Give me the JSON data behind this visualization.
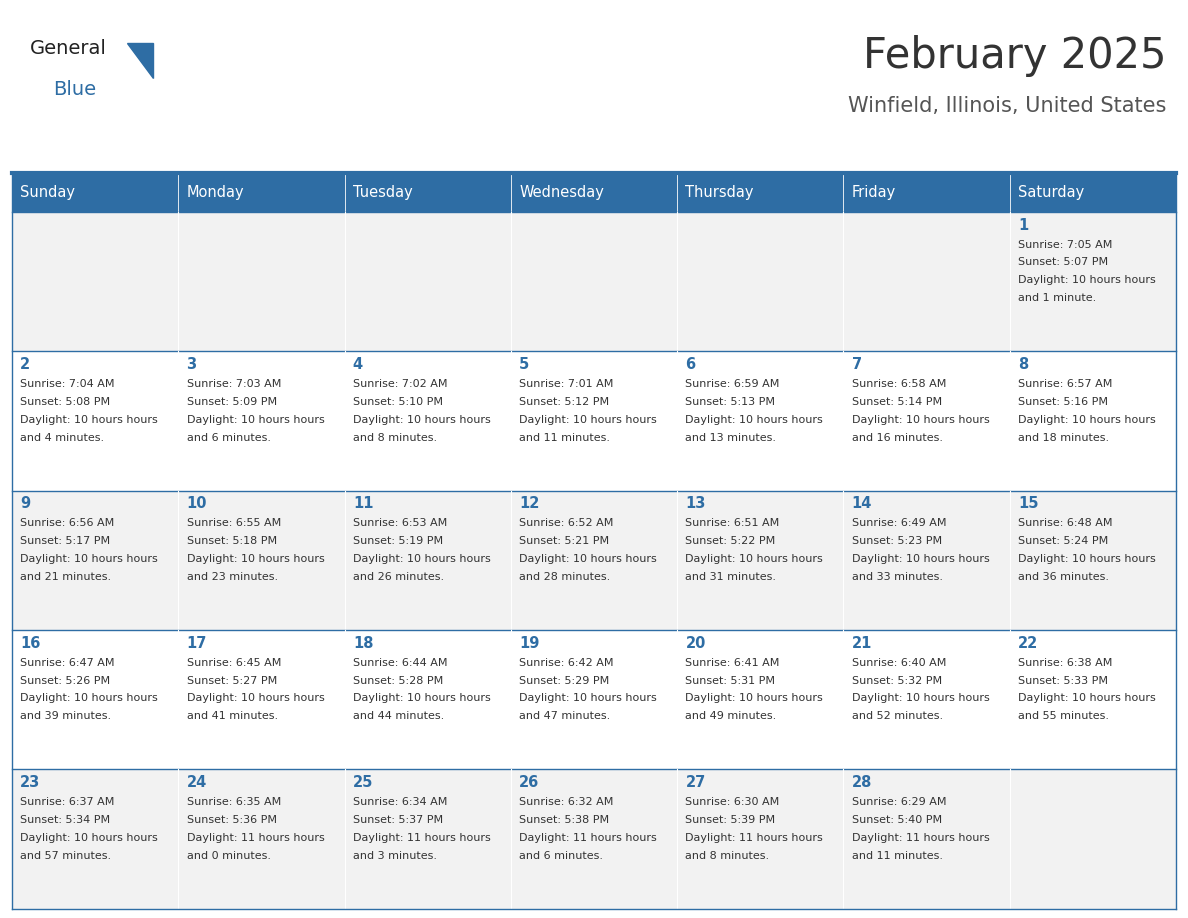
{
  "title": "February 2025",
  "subtitle": "Winfield, Illinois, United States",
  "header_bg": "#2E6DA4",
  "header_text_color": "#FFFFFF",
  "day_names": [
    "Sunday",
    "Monday",
    "Tuesday",
    "Wednesday",
    "Thursday",
    "Friday",
    "Saturday"
  ],
  "cell_bg_odd": "#F2F2F2",
  "cell_bg_even": "#FFFFFF",
  "title_color": "#333333",
  "subtitle_color": "#555555",
  "date_color": "#2E6DA4",
  "text_color": "#333333",
  "line_color": "#2E6DA4",
  "logo_general_color": "#222222",
  "logo_blue_color": "#2E6DA4",
  "calendar_data": [
    [
      null,
      null,
      null,
      null,
      null,
      null,
      {
        "day": 1,
        "sunrise": "7:05 AM",
        "sunset": "5:07 PM",
        "daylight": "10 hours and 1 minute."
      }
    ],
    [
      {
        "day": 2,
        "sunrise": "7:04 AM",
        "sunset": "5:08 PM",
        "daylight": "10 hours and 4 minutes."
      },
      {
        "day": 3,
        "sunrise": "7:03 AM",
        "sunset": "5:09 PM",
        "daylight": "10 hours and 6 minutes."
      },
      {
        "day": 4,
        "sunrise": "7:02 AM",
        "sunset": "5:10 PM",
        "daylight": "10 hours and 8 minutes."
      },
      {
        "day": 5,
        "sunrise": "7:01 AM",
        "sunset": "5:12 PM",
        "daylight": "10 hours and 11 minutes."
      },
      {
        "day": 6,
        "sunrise": "6:59 AM",
        "sunset": "5:13 PM",
        "daylight": "10 hours and 13 minutes."
      },
      {
        "day": 7,
        "sunrise": "6:58 AM",
        "sunset": "5:14 PM",
        "daylight": "10 hours and 16 minutes."
      },
      {
        "day": 8,
        "sunrise": "6:57 AM",
        "sunset": "5:16 PM",
        "daylight": "10 hours and 18 minutes."
      }
    ],
    [
      {
        "day": 9,
        "sunrise": "6:56 AM",
        "sunset": "5:17 PM",
        "daylight": "10 hours and 21 minutes."
      },
      {
        "day": 10,
        "sunrise": "6:55 AM",
        "sunset": "5:18 PM",
        "daylight": "10 hours and 23 minutes."
      },
      {
        "day": 11,
        "sunrise": "6:53 AM",
        "sunset": "5:19 PM",
        "daylight": "10 hours and 26 minutes."
      },
      {
        "day": 12,
        "sunrise": "6:52 AM",
        "sunset": "5:21 PM",
        "daylight": "10 hours and 28 minutes."
      },
      {
        "day": 13,
        "sunrise": "6:51 AM",
        "sunset": "5:22 PM",
        "daylight": "10 hours and 31 minutes."
      },
      {
        "day": 14,
        "sunrise": "6:49 AM",
        "sunset": "5:23 PM",
        "daylight": "10 hours and 33 minutes."
      },
      {
        "day": 15,
        "sunrise": "6:48 AM",
        "sunset": "5:24 PM",
        "daylight": "10 hours and 36 minutes."
      }
    ],
    [
      {
        "day": 16,
        "sunrise": "6:47 AM",
        "sunset": "5:26 PM",
        "daylight": "10 hours and 39 minutes."
      },
      {
        "day": 17,
        "sunrise": "6:45 AM",
        "sunset": "5:27 PM",
        "daylight": "10 hours and 41 minutes."
      },
      {
        "day": 18,
        "sunrise": "6:44 AM",
        "sunset": "5:28 PM",
        "daylight": "10 hours and 44 minutes."
      },
      {
        "day": 19,
        "sunrise": "6:42 AM",
        "sunset": "5:29 PM",
        "daylight": "10 hours and 47 minutes."
      },
      {
        "day": 20,
        "sunrise": "6:41 AM",
        "sunset": "5:31 PM",
        "daylight": "10 hours and 49 minutes."
      },
      {
        "day": 21,
        "sunrise": "6:40 AM",
        "sunset": "5:32 PM",
        "daylight": "10 hours and 52 minutes."
      },
      {
        "day": 22,
        "sunrise": "6:38 AM",
        "sunset": "5:33 PM",
        "daylight": "10 hours and 55 minutes."
      }
    ],
    [
      {
        "day": 23,
        "sunrise": "6:37 AM",
        "sunset": "5:34 PM",
        "daylight": "10 hours and 57 minutes."
      },
      {
        "day": 24,
        "sunrise": "6:35 AM",
        "sunset": "5:36 PM",
        "daylight": "11 hours and 0 minutes."
      },
      {
        "day": 25,
        "sunrise": "6:34 AM",
        "sunset": "5:37 PM",
        "daylight": "11 hours and 3 minutes."
      },
      {
        "day": 26,
        "sunrise": "6:32 AM",
        "sunset": "5:38 PM",
        "daylight": "11 hours and 6 minutes."
      },
      {
        "day": 27,
        "sunrise": "6:30 AM",
        "sunset": "5:39 PM",
        "daylight": "11 hours and 8 minutes."
      },
      {
        "day": 28,
        "sunrise": "6:29 AM",
        "sunset": "5:40 PM",
        "daylight": "11 hours and 11 minutes."
      },
      null
    ]
  ],
  "figsize": [
    11.88,
    9.18
  ],
  "dpi": 100
}
